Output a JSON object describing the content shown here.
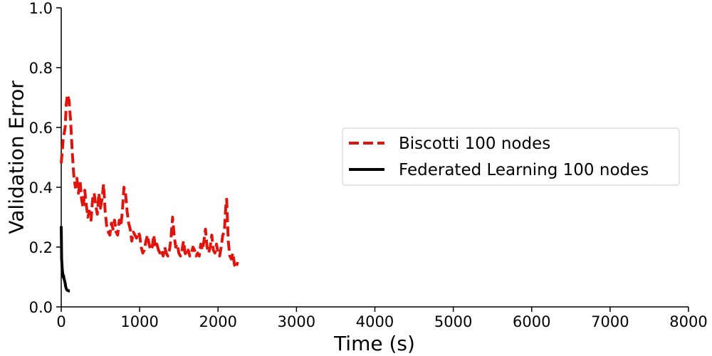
{
  "chart_data": {
    "type": "line",
    "title": "",
    "xlabel": "Time (s)",
    "ylabel": "Validation Error",
    "xlim": [
      0,
      8000
    ],
    "ylim": [
      0,
      1.0
    ],
    "x_ticks": [
      "0",
      "1000",
      "2000",
      "3000",
      "4000",
      "5000",
      "6000",
      "7000",
      "8000"
    ],
    "y_ticks": [
      "0.0",
      "0.2",
      "0.4",
      "0.6",
      "0.8",
      "1.0"
    ],
    "grid": false,
    "legend_position": "center-right",
    "series": [
      {
        "name": "Biscotti 100 nodes",
        "color": "#e0140c",
        "style": "dashed",
        "points": [
          [
            0,
            0.48
          ],
          [
            25,
            0.56
          ],
          [
            50,
            0.6
          ],
          [
            65,
            0.68
          ],
          [
            80,
            0.71
          ],
          [
            100,
            0.69
          ],
          [
            120,
            0.62
          ],
          [
            140,
            0.52
          ],
          [
            160,
            0.44
          ],
          [
            180,
            0.4
          ],
          [
            200,
            0.43
          ],
          [
            220,
            0.38
          ],
          [
            240,
            0.42
          ],
          [
            260,
            0.36
          ],
          [
            280,
            0.33
          ],
          [
            300,
            0.39
          ],
          [
            320,
            0.34
          ],
          [
            340,
            0.3
          ],
          [
            360,
            0.32
          ],
          [
            380,
            0.29
          ],
          [
            400,
            0.36
          ],
          [
            420,
            0.38
          ],
          [
            440,
            0.34
          ],
          [
            460,
            0.31
          ],
          [
            480,
            0.38
          ],
          [
            500,
            0.33
          ],
          [
            520,
            0.36
          ],
          [
            540,
            0.41
          ],
          [
            560,
            0.32
          ],
          [
            580,
            0.27
          ],
          [
            600,
            0.25
          ],
          [
            620,
            0.24
          ],
          [
            640,
            0.28
          ],
          [
            660,
            0.26
          ],
          [
            680,
            0.29
          ],
          [
            700,
            0.25
          ],
          [
            720,
            0.24
          ],
          [
            740,
            0.29
          ],
          [
            760,
            0.27
          ],
          [
            780,
            0.32
          ],
          [
            800,
            0.4
          ],
          [
            820,
            0.38
          ],
          [
            840,
            0.32
          ],
          [
            860,
            0.28
          ],
          [
            880,
            0.26
          ],
          [
            900,
            0.22
          ],
          [
            920,
            0.25
          ],
          [
            940,
            0.24
          ],
          [
            960,
            0.23
          ],
          [
            980,
            0.25
          ],
          [
            1000,
            0.24
          ],
          [
            1020,
            0.2
          ],
          [
            1040,
            0.18
          ],
          [
            1060,
            0.19
          ],
          [
            1080,
            0.22
          ],
          [
            1100,
            0.24
          ],
          [
            1120,
            0.21
          ],
          [
            1140,
            0.19
          ],
          [
            1160,
            0.2
          ],
          [
            1180,
            0.24
          ],
          [
            1200,
            0.2
          ],
          [
            1220,
            0.21
          ],
          [
            1240,
            0.19
          ],
          [
            1260,
            0.18
          ],
          [
            1280,
            0.19
          ],
          [
            1300,
            0.17
          ],
          [
            1320,
            0.2
          ],
          [
            1340,
            0.18
          ],
          [
            1360,
            0.17
          ],
          [
            1380,
            0.19
          ],
          [
            1400,
            0.23
          ],
          [
            1420,
            0.3
          ],
          [
            1440,
            0.24
          ],
          [
            1460,
            0.2
          ],
          [
            1480,
            0.21
          ],
          [
            1500,
            0.18
          ],
          [
            1520,
            0.17
          ],
          [
            1540,
            0.19
          ],
          [
            1560,
            0.22
          ],
          [
            1580,
            0.18
          ],
          [
            1600,
            0.17
          ],
          [
            1620,
            0.19
          ],
          [
            1640,
            0.17
          ],
          [
            1660,
            0.18
          ],
          [
            1680,
            0.2
          ],
          [
            1700,
            0.19
          ],
          [
            1720,
            0.17
          ],
          [
            1740,
            0.18
          ],
          [
            1760,
            0.17
          ],
          [
            1780,
            0.21
          ],
          [
            1800,
            0.19
          ],
          [
            1820,
            0.22
          ],
          [
            1840,
            0.26
          ],
          [
            1860,
            0.2
          ],
          [
            1880,
            0.18
          ],
          [
            1900,
            0.2
          ],
          [
            1920,
            0.24
          ],
          [
            1940,
            0.19
          ],
          [
            1960,
            0.18
          ],
          [
            1980,
            0.21
          ],
          [
            2000,
            0.18
          ],
          [
            2020,
            0.17
          ],
          [
            2040,
            0.2
          ],
          [
            2060,
            0.24
          ],
          [
            2080,
            0.25
          ],
          [
            2100,
            0.34
          ],
          [
            2110,
            0.36
          ],
          [
            2130,
            0.22
          ],
          [
            2150,
            0.17
          ],
          [
            2170,
            0.16
          ],
          [
            2190,
            0.18
          ],
          [
            2210,
            0.14
          ],
          [
            2230,
            0.13
          ],
          [
            2250,
            0.15
          ]
        ]
      },
      {
        "name": "Federated Learning 100 nodes",
        "color": "#000000",
        "style": "solid",
        "points": [
          [
            0,
            0.27
          ],
          [
            5,
            0.16
          ],
          [
            10,
            0.14
          ],
          [
            15,
            0.12
          ],
          [
            20,
            0.11
          ],
          [
            25,
            0.1
          ],
          [
            30,
            0.105
          ],
          [
            35,
            0.095
          ],
          [
            40,
            0.09
          ],
          [
            45,
            0.085
          ],
          [
            50,
            0.08
          ],
          [
            55,
            0.07
          ],
          [
            60,
            0.065
          ],
          [
            65,
            0.06
          ],
          [
            70,
            0.058
          ],
          [
            80,
            0.055
          ],
          [
            90,
            0.055
          ],
          [
            100,
            0.053
          ],
          [
            110,
            0.053
          ]
        ]
      }
    ]
  }
}
